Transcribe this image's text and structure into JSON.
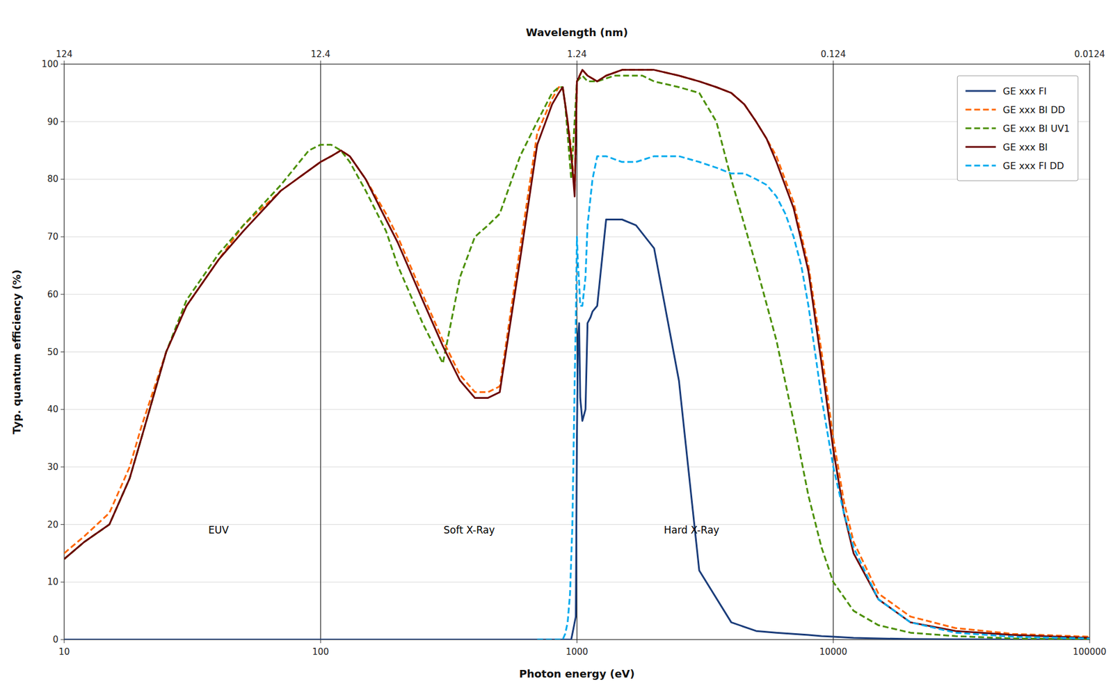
{
  "chart_data": {
    "type": "line",
    "xlabel": "Photon energy (eV)",
    "ylabel": "Typ. quantum efficiency (%)",
    "x2label": "Wavelength (nm)",
    "log": "x",
    "grid": true,
    "legend": "top-right",
    "xlim": [
      10,
      100000
    ],
    "xticks": [
      10,
      100,
      1000,
      10000,
      100000
    ],
    "x2lim": [
      10,
      100000
    ],
    "x2ticks": [
      {
        "value": 10,
        "label": "124"
      },
      {
        "value": 100,
        "label": "12.4"
      },
      {
        "value": 1000,
        "label": "1.24"
      },
      {
        "value": 10000,
        "label": "0.124"
      },
      {
        "value": 100000,
        "label": "0.0124"
      }
    ],
    "ylim": [
      0,
      100
    ],
    "yticks": [
      0,
      10,
      20,
      30,
      40,
      50,
      60,
      70,
      80,
      90,
      100
    ],
    "vlines": [
      100,
      1000,
      10000
    ],
    "annotations": [
      {
        "text": "EUV",
        "x": 40,
        "y": 18
      },
      {
        "text": "Soft X-Ray",
        "x": 380,
        "y": 18
      },
      {
        "text": "Hard X-Ray",
        "x": 2800,
        "y": 18
      }
    ],
    "series": [
      {
        "name": "GE xxx FI",
        "color": "#1a3c7a",
        "line_style": "solid",
        "x": [
          10,
          50,
          100,
          300,
          400,
          450,
          500,
          550,
          600,
          650,
          700,
          750,
          800,
          850,
          900,
          950,
          970,
          990,
          1000,
          1010,
          1020,
          1030,
          1050,
          1080,
          1100,
          1130,
          1150,
          1200,
          1300,
          1500,
          1700,
          2000,
          2500,
          3000,
          4000,
          5000,
          6000,
          7000,
          8000,
          9000,
          10000,
          12000,
          15000,
          20000,
          30000,
          50000,
          100000
        ],
        "values": [
          0,
          0,
          0,
          0,
          0,
          0,
          0,
          0,
          0,
          0,
          0,
          0,
          0,
          0,
          0,
          0,
          2,
          4,
          35,
          53,
          55,
          42,
          38,
          40,
          55,
          56,
          57,
          58,
          73,
          73,
          72,
          68,
          45,
          12,
          3,
          1.5,
          1.2,
          1.0,
          0.8,
          0.6,
          0.5,
          0.3,
          0.2,
          0.1,
          0.05,
          0.02,
          0.01
        ]
      },
      {
        "name": "GE xxx BI DD",
        "color": "#ff6600",
        "line_style": "dashed",
        "x": [
          10,
          12,
          15,
          18,
          20,
          25,
          30,
          40,
          50,
          70,
          100,
          110,
          120,
          130,
          150,
          180,
          200,
          250,
          300,
          350,
          400,
          450,
          500,
          600,
          700,
          800,
          850,
          880,
          900,
          920,
          940,
          960,
          980,
          1000,
          1050,
          1100,
          1200,
          1300,
          1500,
          1700,
          2000,
          2500,
          3000,
          3500,
          4000,
          4500,
          5000,
          5500,
          6000,
          7000,
          8000,
          9000,
          10000,
          11000,
          12000,
          15000,
          20000,
          30000,
          50000,
          100000
        ],
        "values": [
          15,
          18,
          22,
          30,
          37,
          50,
          58,
          66,
          72,
          78,
          83,
          84,
          85,
          84,
          80,
          74,
          70,
          60,
          52,
          46,
          43,
          43,
          44,
          68,
          88,
          94,
          96,
          96,
          93,
          90,
          87,
          83,
          78,
          97,
          99,
          98,
          97,
          98,
          99,
          99,
          99,
          98,
          97,
          96,
          95,
          93,
          90,
          87,
          84,
          76,
          65,
          50,
          35,
          24,
          17,
          8,
          4,
          2,
          1,
          0.5
        ]
      },
      {
        "name": "GE xxx BI UV1",
        "color": "#4a8f00",
        "line_style": "dashed",
        "x": [
          10,
          12,
          15,
          18,
          20,
          25,
          30,
          40,
          50,
          70,
          90,
          100,
          110,
          120,
          130,
          150,
          180,
          200,
          250,
          300,
          350,
          400,
          450,
          500,
          600,
          700,
          800,
          850,
          880,
          900,
          950,
          1000,
          1050,
          1100,
          1200,
          1400,
          1600,
          1800,
          2000,
          2500,
          3000,
          3500,
          4000,
          5000,
          6000,
          7000,
          8000,
          9000,
          10000,
          12000,
          15000,
          20000,
          30000,
          50000,
          100000
        ],
        "values": [
          14,
          17,
          20,
          28,
          35,
          50,
          59,
          67,
          72,
          79,
          85,
          86,
          86,
          85,
          83,
          78,
          71,
          65,
          55,
          48,
          63,
          70,
          72,
          74,
          84,
          90,
          95,
          96,
          96,
          93,
          80,
          97,
          98,
          97,
          97,
          98,
          98,
          98,
          97,
          96,
          95,
          90,
          80,
          65,
          52,
          38,
          25,
          16,
          10,
          5,
          2.5,
          1.2,
          0.6,
          0.2,
          0.1
        ]
      },
      {
        "name": "GE xxx BI",
        "color": "#6b0000",
        "line_style": "solid",
        "x": [
          10,
          12,
          15,
          18,
          20,
          25,
          30,
          40,
          50,
          70,
          100,
          110,
          120,
          130,
          150,
          180,
          200,
          250,
          300,
          350,
          400,
          450,
          500,
          600,
          700,
          800,
          850,
          880,
          900,
          920,
          940,
          960,
          980,
          1000,
          1050,
          1100,
          1200,
          1300,
          1500,
          1700,
          2000,
          2500,
          3000,
          3500,
          4000,
          4500,
          5000,
          5500,
          6000,
          7000,
          8000,
          9000,
          10000,
          11000,
          12000,
          15000,
          20000,
          30000,
          50000,
          100000
        ],
        "values": [
          14,
          17,
          20,
          28,
          35,
          50,
          58,
          66,
          71,
          78,
          83,
          84,
          85,
          84,
          80,
          73,
          69,
          59,
          51,
          45,
          42,
          42,
          43,
          66,
          86,
          93,
          95,
          96,
          93,
          90,
          86,
          82,
          77,
          97,
          99,
          98,
          97,
          98,
          99,
          99,
          99,
          98,
          97,
          96,
          95,
          93,
          90,
          87,
          83,
          75,
          64,
          48,
          33,
          22,
          15,
          7,
          3,
          1.5,
          0.8,
          0.3
        ]
      },
      {
        "name": "GE xxx FI DD",
        "color": "#00aaee",
        "line_style": "dashed",
        "x": [
          700,
          800,
          850,
          880,
          900,
          920,
          940,
          960,
          980,
          990,
          1000,
          1010,
          1020,
          1030,
          1050,
          1080,
          1100,
          1150,
          1200,
          1300,
          1500,
          1700,
          2000,
          2500,
          3000,
          3500,
          4000,
          4500,
          5000,
          5500,
          6000,
          6500,
          7000,
          7500,
          8000,
          9000,
          10000,
          11000,
          12000,
          15000,
          20000,
          30000,
          50000,
          100000
        ],
        "values": [
          0,
          0,
          0,
          0,
          1,
          3,
          8,
          20,
          45,
          55,
          70,
          65,
          62,
          58,
          58,
          63,
          72,
          80,
          84,
          84,
          83,
          83,
          84,
          84,
          83,
          82,
          81,
          81,
          80,
          79,
          77,
          74,
          70,
          65,
          58,
          42,
          30,
          22,
          16,
          7,
          3,
          1.2,
          0.5,
          0.2
        ]
      }
    ]
  }
}
